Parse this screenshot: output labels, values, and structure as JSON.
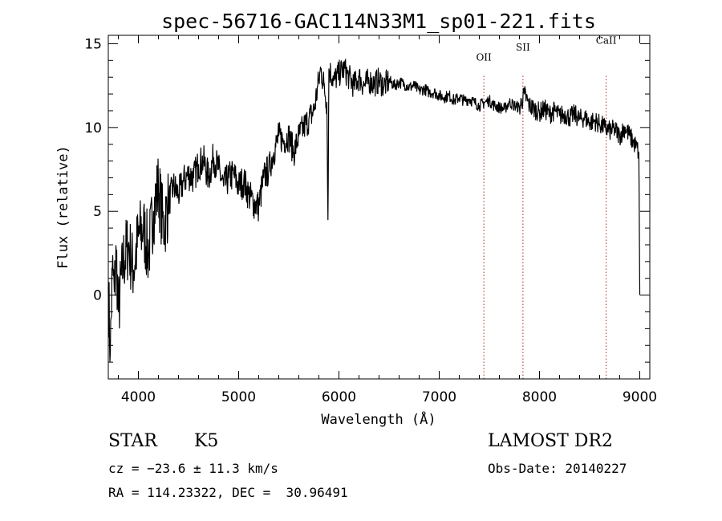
{
  "chart_data": {
    "type": "line",
    "title": "spec-56716-GAC114N33M1_sp01-221.fits",
    "xlabel": "Wavelength (Å)",
    "ylabel": "Flux (relative)",
    "xlim": [
      3700,
      9100
    ],
    "ylim": [
      -5,
      15.5
    ],
    "xticks": [
      4000,
      5000,
      6000,
      7000,
      8000,
      9000
    ],
    "yticks": [
      0,
      5,
      10,
      15
    ],
    "grid": false,
    "legend": "none",
    "line_color": "#000000",
    "line_markers": [
      {
        "label": "OII",
        "x": 7445,
        "color": "#b22222"
      },
      {
        "label": "SII",
        "x": 7835,
        "color": "#b22222"
      },
      {
        "label": "CaII",
        "x": 8665,
        "color": "#b22222"
      }
    ],
    "series": [
      {
        "x": [
          3700,
          3720,
          3740,
          3760,
          3780,
          3800,
          3850,
          3900,
          3950,
          4000,
          4050,
          4100,
          4150,
          4200,
          4250,
          4300,
          4350,
          4400,
          4450,
          4500,
          4550,
          4600,
          4650,
          4700,
          4750,
          4800,
          4850,
          4900,
          4950,
          5000,
          5050,
          5100,
          5150,
          5200,
          5250,
          5300,
          5350,
          5400,
          5450,
          5500,
          5550,
          5600,
          5650,
          5700,
          5750,
          5800,
          5820,
          5850,
          5880,
          5890,
          5900,
          5950,
          6000,
          6050,
          6100,
          6150,
          6200,
          6250,
          6300,
          6350,
          6400,
          6450,
          6500,
          6550,
          6600,
          6650,
          6700,
          6750,
          6800,
          6850,
          6900,
          6950,
          7000,
          7050,
          7100,
          7150,
          7200,
          7250,
          7300,
          7350,
          7400,
          7450,
          7500,
          7550,
          7600,
          7650,
          7700,
          7750,
          7800,
          7850,
          7900,
          7950,
          8000,
          8050,
          8100,
          8150,
          8200,
          8250,
          8300,
          8350,
          8400,
          8450,
          8500,
          8550,
          8600,
          8650,
          8700,
          8750,
          8800,
          8850,
          8900,
          8950,
          8990,
          9000
        ],
        "y": [
          0.5,
          -3.5,
          1.5,
          0.2,
          2.5,
          -1,
          2,
          3,
          1.5,
          3.5,
          4,
          2.5,
          5,
          6.5,
          4,
          5.5,
          6.5,
          6,
          6.8,
          7.2,
          7,
          7.8,
          8,
          7,
          8.2,
          7.5,
          6.5,
          7,
          7.2,
          6.5,
          6.8,
          6,
          5.5,
          5.3,
          7,
          7.5,
          8.5,
          9.5,
          9.2,
          9.5,
          8.5,
          9.5,
          10,
          10.5,
          11,
          12.8,
          13.5,
          12.5,
          11.5,
          4.5,
          13.5,
          12.8,
          13.2,
          13.5,
          13,
          12.5,
          13,
          12.5,
          12.8,
          12.6,
          12.8,
          12.5,
          12.8,
          12.5,
          12.7,
          12.6,
          12.4,
          12.5,
          12.2,
          12.3,
          12.1,
          12.1,
          11.9,
          11.8,
          11.9,
          11.6,
          11.8,
          11.6,
          11.7,
          11.5,
          11.3,
          11.5,
          11.6,
          11.3,
          11.2,
          11.1,
          11.5,
          11.3,
          11.2,
          12,
          11.3,
          11.1,
          10.9,
          11.1,
          10.8,
          11.0,
          10.7,
          10.8,
          10.6,
          10.8,
          10.5,
          10.6,
          10.3,
          10.4,
          10.2,
          10.0,
          9.8,
          9.9,
          9.5,
          10,
          9.5,
          9.0,
          8.5,
          0
        ]
      }
    ]
  },
  "info": {
    "object_class": "STAR",
    "subclass": "K5",
    "survey": "LAMOST DR2",
    "cz": "cz = −23.6 ± 11.3 km/s",
    "obs_date": "Obs-Date: 20140227",
    "radec": "RA = 114.23322, DEC =  30.96491"
  }
}
